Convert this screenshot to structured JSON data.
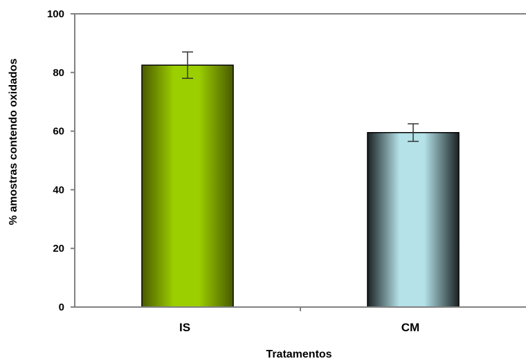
{
  "chart_data": {
    "type": "bar",
    "title": "",
    "xlabel": "Tratamentos",
    "ylabel": "% amostras contendo oxidados",
    "categories": [
      "IS",
      "CM"
    ],
    "values": [
      82.5,
      59.5
    ],
    "error": [
      4.5,
      3.0
    ],
    "ylim": [
      0,
      100
    ],
    "yticks": [
      0,
      20,
      40,
      60,
      80,
      100
    ],
    "grid": false,
    "legend": "none",
    "colors": {
      "IS": {
        "dark": "#4a5a00",
        "light": "#9ccf00"
      },
      "CM": {
        "dark": "#1a2224",
        "light": "#b4e2e8"
      },
      "axis": "#808080",
      "error_bar": "#333333"
    }
  }
}
